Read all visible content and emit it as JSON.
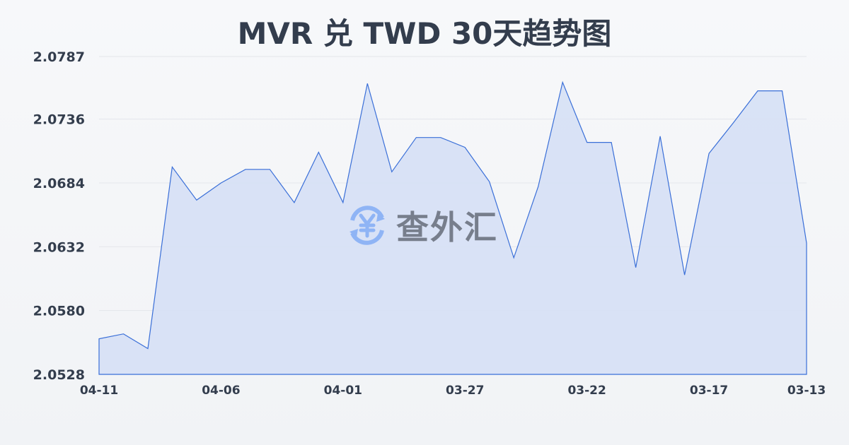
{
  "chart_data": {
    "type": "area",
    "title": "MVR 兑 TWD 30天趋势图",
    "xlabel": "",
    "ylabel": "",
    "x": [
      "04-11",
      "04-10",
      "04-09",
      "04-08",
      "04-07",
      "04-06",
      "04-05",
      "04-04",
      "04-03",
      "04-02",
      "04-01",
      "03-31",
      "03-30",
      "03-29",
      "03-28",
      "03-27",
      "03-26",
      "03-25",
      "03-24",
      "03-23",
      "03-22",
      "03-21",
      "03-20",
      "03-19",
      "03-18",
      "03-17",
      "03-16",
      "03-15",
      "03-14",
      "03-13"
    ],
    "values": [
      2.0557,
      2.0561,
      2.0549,
      2.0697,
      2.067,
      2.0684,
      2.0695,
      2.0695,
      2.0668,
      2.0709,
      2.0668,
      2.0765,
      2.0693,
      2.0721,
      2.0721,
      2.0713,
      2.0685,
      2.0623,
      2.0681,
      2.0766,
      2.0717,
      2.0717,
      2.0615,
      2.0722,
      2.0609,
      2.0708,
      2.0733,
      2.0759,
      2.0759,
      2.0635
    ],
    "x_tick_labels": [
      "04-11",
      "04-06",
      "04-01",
      "03-27",
      "03-22",
      "03-17",
      "03-13"
    ],
    "y_tick_labels": [
      "2.0787",
      "2.0736",
      "2.0684",
      "2.0632",
      "2.0580",
      "2.0528"
    ],
    "ylim": [
      2.0528,
      2.0787
    ],
    "grid": true,
    "colors": {
      "line": "#3a6fd8",
      "fill": "#d6e0f5"
    }
  },
  "watermark": {
    "text": "查外汇",
    "icon": "yen-exchange-icon",
    "icon_color": "#8fb4f5"
  }
}
